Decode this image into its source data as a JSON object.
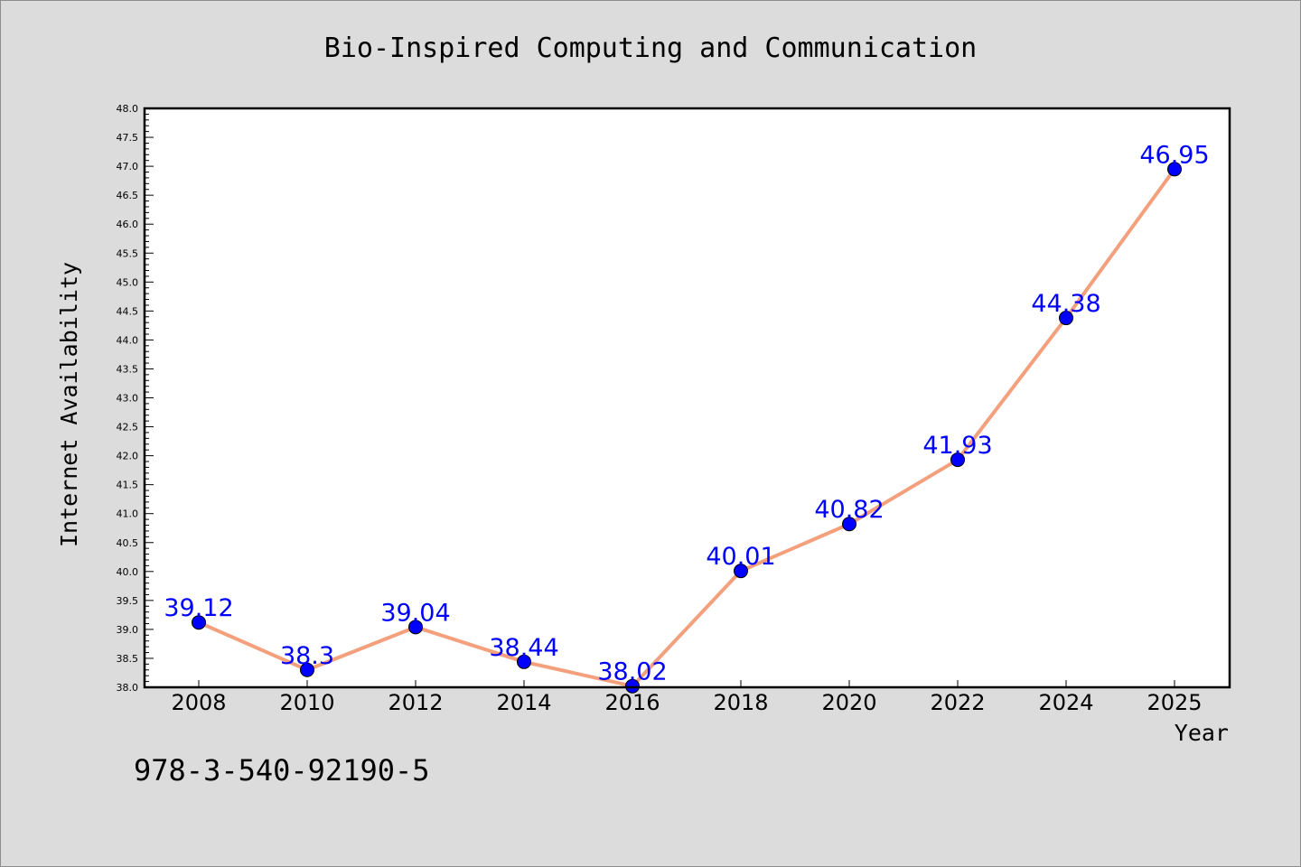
{
  "footnote": "978-3-540-92190-5",
  "colors": {
    "line": "#f4a07c",
    "marker": "#0000ff",
    "label": "#0000ff",
    "plot_background": "#ffffff",
    "page_background": "#dcdcdc"
  },
  "chart_data": {
    "type": "line",
    "title": "Bio-Inspired Computing and Communication",
    "xlabel": "Year",
    "ylabel": "Internet Availability",
    "categories": [
      "2008",
      "2010",
      "2012",
      "2014",
      "2016",
      "2018",
      "2020",
      "2022",
      "2024",
      "2025"
    ],
    "series": [
      {
        "values": [
          39.12,
          38.3,
          39.04,
          38.44,
          38.02,
          40.01,
          40.82,
          41.93,
          44.38,
          46.95
        ],
        "labels": [
          "39.12",
          "38.3",
          "39.04",
          "38.44",
          "38.02",
          "40.01",
          "40.82",
          "41.93",
          "44.38",
          "46.95"
        ]
      }
    ],
    "ylim": [
      38.0,
      48.0
    ],
    "yticks": [
      "38.0",
      "38.5",
      "39.0",
      "39.5",
      "40.0",
      "40.5",
      "41.0",
      "41.5",
      "42.0",
      "42.5",
      "43.0",
      "43.5",
      "44.0",
      "44.5",
      "45.0",
      "45.5",
      "46.0",
      "46.5",
      "47.0",
      "47.5",
      "48.0"
    ],
    "grid": false,
    "legend": "none"
  }
}
